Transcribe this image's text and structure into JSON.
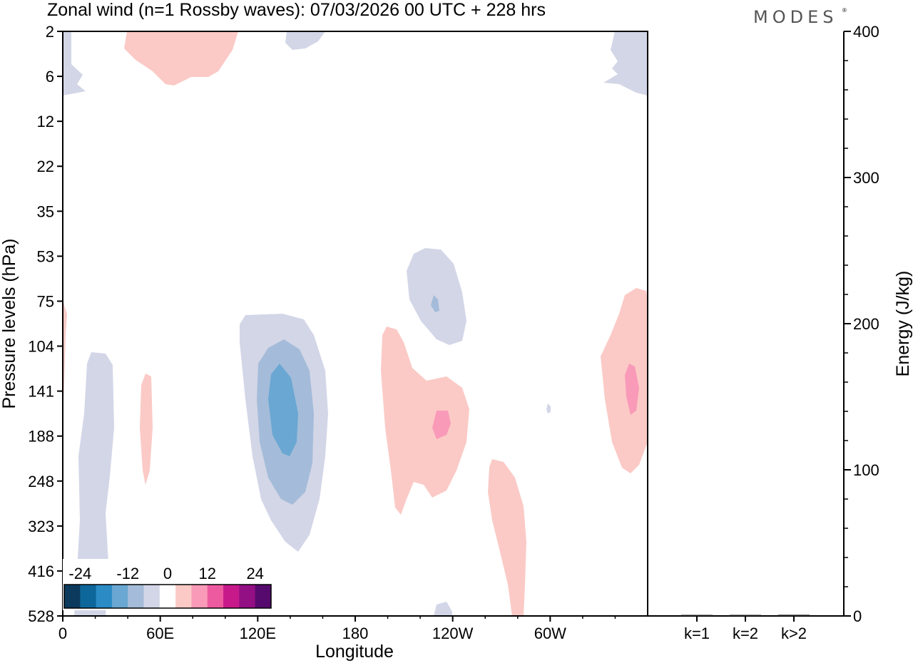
{
  "title": "Zonal wind (n=1 Rossby waves):  07/03/2026  00 UTC  + 228 hrs",
  "logo": "MODES",
  "logo_mark": "®",
  "chart_data": [
    {
      "type": "contour",
      "title": "Zonal wind (n=1 Rossby waves)",
      "xlabel": "Longitude",
      "ylabel": "Pressure levels (hPa)",
      "x_ticks": [
        "0",
        "60E",
        "120E",
        "180",
        "120W",
        "60W"
      ],
      "x_tick_values": [
        0,
        60,
        120,
        180,
        240,
        300
      ],
      "xlim": [
        0,
        360
      ],
      "y_ticks": [
        "2",
        "6",
        "12",
        "22",
        "35",
        "53",
        "75",
        "104",
        "141",
        "188",
        "248",
        "323",
        "416",
        "528"
      ],
      "colorbar": {
        "labels": [
          "-24",
          "-12",
          "0",
          "12",
          "24"
        ],
        "colors": [
          "#0b3a5c",
          "#0d679b",
          "#2b8bc5",
          "#6aa7d2",
          "#a4bcd9",
          "#d3d6e7",
          "#ffffff",
          "#fbcac6",
          "#f99ab8",
          "#ee5a9f",
          "#c8198b",
          "#930f84",
          "#560a6e"
        ]
      },
      "features": [
        {
          "sign": "negative",
          "max_magnitude": "-9",
          "location": "~135E, 104-248 hPa"
        },
        {
          "sign": "negative",
          "max_magnitude": "-3",
          "location": "~228E, 53-104 hPa"
        },
        {
          "sign": "negative",
          "max_magnitude": "-3",
          "location": "~15E, 104-528 hPa"
        },
        {
          "sign": "positive",
          "max_magnitude": "6",
          "location": "~232E, 104-323 hPa"
        },
        {
          "sign": "positive",
          "max_magnitude": "6",
          "location": "~350E, 75-248 hPa"
        },
        {
          "sign": "positive",
          "max_magnitude": "3",
          "location": "~265E, 248-528 hPa"
        },
        {
          "sign": "positive",
          "max_magnitude": "3",
          "location": "~65E, 2-6 hPa"
        }
      ]
    },
    {
      "type": "bar",
      "ylabel": "Energy (J/kg)",
      "categories": [
        "k=1",
        "k=2",
        "k>2"
      ],
      "values": [
        0.3,
        0.5,
        0.8
      ],
      "ylim": [
        0,
        400
      ],
      "y_ticks": [
        "0",
        "100",
        "200",
        "300",
        "400"
      ]
    }
  ]
}
